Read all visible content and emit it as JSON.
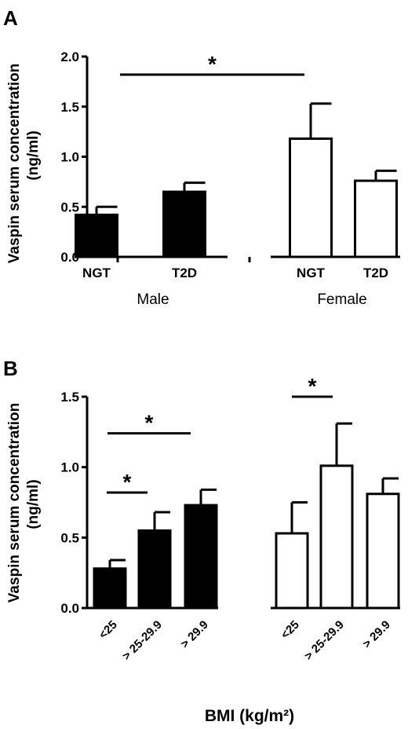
{
  "chart_data": [
    {
      "panel_label": "A",
      "type": "bar",
      "ylabel_line1": "Vaspin serum concentration",
      "ylabel_line2": "(ng/ml)",
      "ylim": [
        0,
        2.0
      ],
      "yticks": [
        "0.0",
        "0.5",
        "1.0",
        "1.5",
        "2.0"
      ],
      "grid": false,
      "groups": [
        {
          "label": "Male",
          "fill": "#000000",
          "bars": [
            {
              "category": "NGT",
              "value": 0.42,
              "error": 0.08
            },
            {
              "category": "T2D",
              "value": 0.65,
              "error": 0.09
            }
          ]
        },
        {
          "label": "Female",
          "fill": "#ffffff",
          "bars": [
            {
              "category": "NGT",
              "value": 1.18,
              "error": 0.35
            },
            {
              "category": "T2D",
              "value": 0.76,
              "error": 0.1
            }
          ]
        }
      ],
      "significance": [
        {
          "label": "*",
          "from": "Male NGT",
          "to": "Female NGT",
          "y": 1.82
        }
      ]
    },
    {
      "panel_label": "B",
      "type": "bar",
      "ylabel_line1": "Vaspin serum concentration",
      "ylabel_line2": "(ng/ml)",
      "xlabel": "BMI (kg/m²)",
      "ylim": [
        0,
        1.5
      ],
      "yticks": [
        "0.0",
        "0.5",
        "1.0",
        "1.5"
      ],
      "grid": false,
      "groups": [
        {
          "label": "",
          "fill": "#000000",
          "bars": [
            {
              "category": "<25",
              "value": 0.28,
              "error": 0.06
            },
            {
              "category": "> 25-29.9",
              "value": 0.55,
              "error": 0.13
            },
            {
              "category": "> 29.9",
              "value": 0.73,
              "error": 0.11
            }
          ]
        },
        {
          "label": "",
          "fill": "#ffffff",
          "bars": [
            {
              "category": "<25",
              "value": 0.53,
              "error": 0.22
            },
            {
              "category": "> 25-29.9",
              "value": 1.01,
              "error": 0.3
            },
            {
              "category": "> 29.9",
              "value": 0.81,
              "error": 0.11
            }
          ]
        }
      ],
      "significance": [
        {
          "label": "*",
          "from": "black <25",
          "to": "black > 25-29.9",
          "y": 0.82
        },
        {
          "label": "*",
          "from": "black <25",
          "to": "black > 29.9",
          "y": 1.24
        },
        {
          "label": "*",
          "from": "white <25",
          "to": "white > 25-29.9",
          "y": 1.5
        }
      ]
    }
  ]
}
